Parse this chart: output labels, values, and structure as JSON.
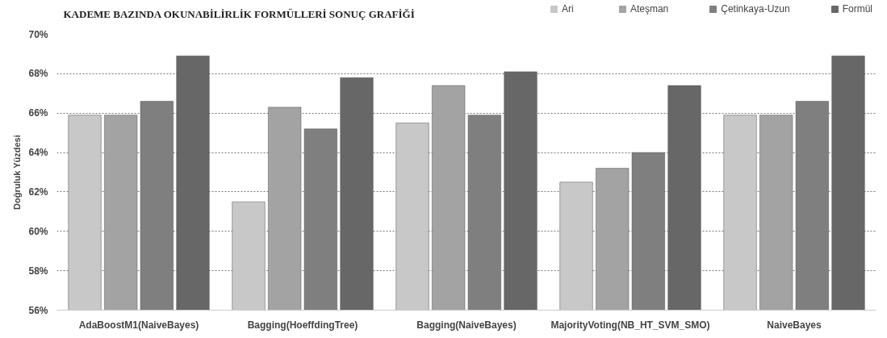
{
  "chart_data": {
    "type": "bar",
    "title": "KADEME BAZINDA OKUNABİLİRLİK FORMÜLLERİ SONUÇ GRAFİĞİ",
    "ylabel": "Doğruluk Yüzdesi",
    "categories": [
      "AdaBoostM1(NaiveBayes)",
      "Bagging(HoeffdingTree)",
      "Bagging(NaiveBayes)",
      "MajorityVoting(NB_HT_SVM_SMO)",
      "NaiveBayes"
    ],
    "series": [
      {
        "name": "Ari",
        "color": "#c8c8c8",
        "values": [
          65.9,
          61.5,
          65.5,
          62.5,
          65.9
        ]
      },
      {
        "name": "Ateşman",
        "color": "#a3a3a3",
        "values": [
          65.9,
          66.3,
          67.4,
          63.2,
          65.9
        ]
      },
      {
        "name": "Çetinkaya-Uzun",
        "color": "#7f7f7f",
        "values": [
          66.6,
          65.2,
          65.9,
          64.0,
          66.6
        ]
      },
      {
        "name": "Formül",
        "color": "#676767",
        "values": [
          68.9,
          67.8,
          68.1,
          67.4,
          68.9
        ]
      }
    ],
    "ylim": [
      56,
      70
    ],
    "yticks": [
      {
        "value": 56,
        "label": "56%"
      },
      {
        "value": 58,
        "label": "58%"
      },
      {
        "value": 60,
        "label": "60%"
      },
      {
        "value": 62,
        "label": "62%"
      },
      {
        "value": 64,
        "label": "64%"
      },
      {
        "value": 66,
        "label": "66%"
      },
      {
        "value": 68,
        "label": "68%"
      },
      {
        "value": 70,
        "label": "70%"
      }
    ],
    "grid": "y",
    "legend": "top right"
  }
}
